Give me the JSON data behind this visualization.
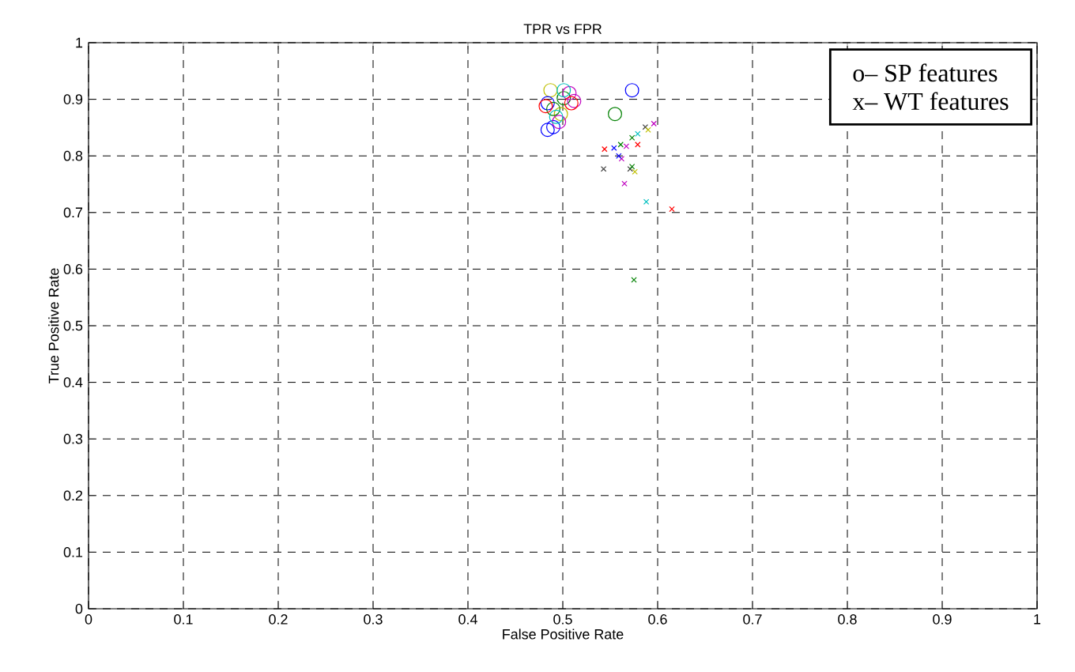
{
  "chart_data": {
    "type": "scatter",
    "title": "TPR vs FPR",
    "xlabel": "False Positive Rate",
    "ylabel": "True Positive Rate",
    "xlim": [
      0,
      1
    ],
    "ylim": [
      0,
      1
    ],
    "xticks": [
      0,
      0.1,
      0.2,
      0.3,
      0.4,
      0.5,
      0.6,
      0.7,
      0.8,
      0.9,
      1
    ],
    "yticks": [
      0,
      0.1,
      0.2,
      0.3,
      0.4,
      0.5,
      0.6,
      0.7,
      0.8,
      0.9,
      1
    ],
    "grid": true,
    "annotations": [
      "o– SP features",
      "x– WT features"
    ],
    "series": [
      {
        "color": "#bfbf00",
        "marker": "circle",
        "x": [
          0.487,
          0.498
        ],
        "values": [
          0.916,
          0.874
        ]
      },
      {
        "color": "#0000ff",
        "marker": "circle",
        "x": [
          0.573,
          0.484,
          0.484,
          0.49
        ],
        "values": [
          0.916,
          0.893,
          0.846,
          0.851
        ]
      },
      {
        "color": "#008000",
        "marker": "circle",
        "x": [
          0.555,
          0.49,
          0.501
        ],
        "values": [
          0.874,
          0.883,
          0.902
        ]
      },
      {
        "color": "#bf00bf",
        "marker": "circle",
        "x": [
          0.507,
          0.496,
          0.512
        ],
        "values": [
          0.911,
          0.86,
          0.897
        ]
      },
      {
        "color": "#00bfbf",
        "marker": "circle",
        "x": [
          0.501,
          0.493
        ],
        "values": [
          0.916,
          0.869
        ]
      },
      {
        "color": "#ff0000",
        "marker": "circle",
        "x": [
          0.509,
          0.482
        ],
        "values": [
          0.893,
          0.888
        ]
      },
      {
        "color": "#404040",
        "marker": "cross",
        "x": [
          0.587,
          0.543,
          0.571
        ],
        "values": [
          0.851,
          0.777,
          0.777
        ]
      },
      {
        "color": "#bf00bf",
        "marker": "cross",
        "x": [
          0.596,
          0.567,
          0.565,
          0.562
        ],
        "values": [
          0.857,
          0.817,
          0.751,
          0.795
        ]
      },
      {
        "color": "#bfbf00",
        "marker": "cross",
        "x": [
          0.59,
          0.576
        ],
        "values": [
          0.846,
          0.772
        ]
      },
      {
        "color": "#00bfbf",
        "marker": "cross",
        "x": [
          0.579,
          0.588
        ],
        "values": [
          0.839,
          0.719
        ]
      },
      {
        "color": "#008000",
        "marker": "cross",
        "x": [
          0.573,
          0.561,
          0.573,
          0.575
        ],
        "values": [
          0.832,
          0.82,
          0.781,
          0.581
        ]
      },
      {
        "color": "#ff0000",
        "marker": "cross",
        "x": [
          0.579,
          0.544,
          0.615
        ],
        "values": [
          0.82,
          0.812,
          0.706
        ]
      },
      {
        "color": "#0000ff",
        "marker": "cross",
        "x": [
          0.554,
          0.559
        ],
        "values": [
          0.814,
          0.8
        ]
      }
    ]
  }
}
